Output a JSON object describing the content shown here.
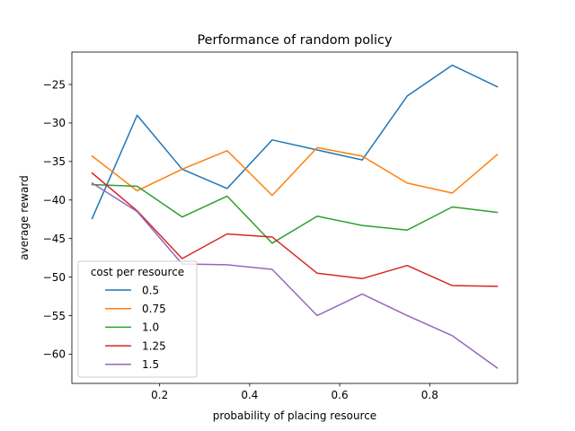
{
  "chart_data": {
    "type": "line",
    "title": "Performance of random policy",
    "xlabel": "probability of placing resource",
    "ylabel": "average reward",
    "xlim": [
      0.005,
      0.995
    ],
    "ylim": [
      -63.8,
      -20.8
    ],
    "xticks": [
      0.2,
      0.4,
      0.6,
      0.8
    ],
    "xtick_labels": [
      "0.2",
      "0.4",
      "0.6",
      "0.8"
    ],
    "yticks": [
      -60,
      -55,
      -50,
      -45,
      -40,
      -35,
      -30,
      -25
    ],
    "ytick_labels": [
      "−60",
      "−55",
      "−50",
      "−45",
      "−40",
      "−35",
      "−30",
      "−25"
    ],
    "grid": false,
    "legend": {
      "title": "cost per resource",
      "placement": "lower-left"
    },
    "x": [
      0.05,
      0.15,
      0.25,
      0.35,
      0.45,
      0.55,
      0.65,
      0.75,
      0.85,
      0.95
    ],
    "series": [
      {
        "name": "0.5",
        "color": "#1f77b4",
        "values": [
          -42.4,
          -29.0,
          -36.0,
          -38.5,
          -32.2,
          -33.5,
          -34.8,
          -26.5,
          -22.5,
          -25.3
        ]
      },
      {
        "name": "0.75",
        "color": "#ff7f0e",
        "values": [
          -34.3,
          -38.8,
          -36.0,
          -33.6,
          -39.4,
          -33.2,
          -34.3,
          -37.8,
          -39.1,
          -34.1
        ]
      },
      {
        "name": "1.0",
        "color": "#2ca02c",
        "values": [
          -38.0,
          -38.2,
          -42.2,
          -39.5,
          -45.6,
          -42.1,
          -43.3,
          -43.9,
          -40.9,
          -41.6
        ]
      },
      {
        "name": "1.25",
        "color": "#d62728",
        "values": [
          -36.5,
          -41.4,
          -47.6,
          -44.4,
          -44.8,
          -49.5,
          -50.2,
          -48.5,
          -51.1,
          -51.2
        ]
      },
      {
        "name": "1.5",
        "color": "#9467bd",
        "values": [
          -37.8,
          -41.5,
          -48.3,
          -48.4,
          -49.0,
          -55.0,
          -52.2,
          -55.0,
          -57.6,
          -61.8
        ]
      }
    ]
  }
}
